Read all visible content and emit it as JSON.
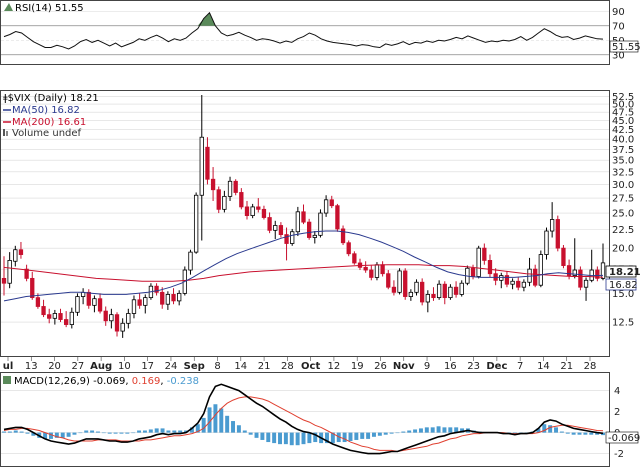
{
  "rsi_panel": {
    "label": "RSI(14)",
    "value_text": "51.55",
    "ticks": [
      "90",
      "70",
      "50",
      "30"
    ],
    "last_badge": "51.55"
  },
  "price_panel": {
    "symbol_label": "$VIX (Daily)",
    "symbol_value": "18.21",
    "ma50_label": "MA(50)",
    "ma50_value": "16.82",
    "ma200_label": "MA(200)",
    "ma200_value": "16.61",
    "volume_label": "Volume undef",
    "price_ticks": [
      "52.5",
      "50.0",
      "47.5",
      "45.0",
      "42.5",
      "40.0",
      "37.5",
      "35.0",
      "32.5",
      "30.0",
      "27.5",
      "25.0",
      "22.5",
      "20.0",
      "17.5",
      "15.0",
      "12.5"
    ],
    "last_badge": "18.21",
    "ma_badge": "16.82"
  },
  "macd_panel": {
    "label": "MACD(12,26,9)",
    "macd_value": "-0.069",
    "signal_value": "0.169",
    "hist_value": "-0.238",
    "ticks": [
      "4",
      "2",
      "0",
      "-2"
    ],
    "last_badge": "-0.069"
  },
  "x_axis": {
    "labels": [
      {
        "text": "ul",
        "bold": true
      },
      {
        "text": "13",
        "bold": false
      },
      {
        "text": "20",
        "bold": false
      },
      {
        "text": "27",
        "bold": false
      },
      {
        "text": "Aug",
        "bold": true
      },
      {
        "text": "10",
        "bold": false
      },
      {
        "text": "17",
        "bold": false
      },
      {
        "text": "24",
        "bold": false
      },
      {
        "text": "Sep",
        "bold": true
      },
      {
        "text": "8",
        "bold": false
      },
      {
        "text": "14",
        "bold": false
      },
      {
        "text": "21",
        "bold": false
      },
      {
        "text": "28",
        "bold": false
      },
      {
        "text": "Oct",
        "bold": true
      },
      {
        "text": "12",
        "bold": false
      },
      {
        "text": "19",
        "bold": false
      },
      {
        "text": "26",
        "bold": false
      },
      {
        "text": "Nov",
        "bold": true
      },
      {
        "text": "9",
        "bold": false
      },
      {
        "text": "16",
        "bold": false
      },
      {
        "text": "23",
        "bold": false
      },
      {
        "text": "Dec",
        "bold": true
      },
      {
        "text": "7",
        "bold": false
      },
      {
        "text": "14",
        "bold": false
      },
      {
        "text": "21",
        "bold": false
      },
      {
        "text": "28",
        "bold": false
      }
    ]
  },
  "colors": {
    "up": "#000000",
    "down": "#c8102e",
    "ma50": "#2b3a8f",
    "ma200": "#c8102e",
    "macd": "#000000",
    "signal": "#e04030",
    "hist": "#4a9bd0",
    "rsi_fill": "#5a8a5a",
    "grid": "#d9d9d9"
  },
  "chart_data": {
    "type": "candlestick",
    "title": "$VIX (Daily)",
    "ylim": [
      10.2,
      54
    ],
    "y_scale": "log",
    "x_months": [
      "Jul",
      "Aug",
      "Sep",
      "Oct",
      "Nov",
      "Dec"
    ],
    "candles": [
      {
        "o": 16.5,
        "h": 19.0,
        "l": 14.8,
        "c": 16.0
      },
      {
        "o": 16.0,
        "h": 19.5,
        "l": 15.5,
        "c": 18.5
      },
      {
        "o": 18.4,
        "h": 20.3,
        "l": 17.8,
        "c": 19.8
      },
      {
        "o": 19.8,
        "h": 20.8,
        "l": 18.7,
        "c": 19.2
      },
      {
        "o": 17.5,
        "h": 18.0,
        "l": 16.2,
        "c": 16.5
      },
      {
        "o": 16.5,
        "h": 17.2,
        "l": 14.4,
        "c": 14.6
      },
      {
        "o": 14.6,
        "h": 15.0,
        "l": 13.6,
        "c": 13.8
      },
      {
        "o": 13.8,
        "h": 14.4,
        "l": 12.9,
        "c": 13.1
      },
      {
        "o": 13.1,
        "h": 13.6,
        "l": 12.4,
        "c": 12.8
      },
      {
        "o": 12.8,
        "h": 13.5,
        "l": 12.3,
        "c": 13.2
      },
      {
        "o": 13.2,
        "h": 13.6,
        "l": 12.5,
        "c": 12.7
      },
      {
        "o": 12.7,
        "h": 13.4,
        "l": 12.1,
        "c": 12.3
      },
      {
        "o": 12.3,
        "h": 13.7,
        "l": 12.0,
        "c": 13.3
      },
      {
        "o": 13.3,
        "h": 15.0,
        "l": 13.0,
        "c": 14.7
      },
      {
        "o": 14.7,
        "h": 15.5,
        "l": 14.0,
        "c": 15.1
      },
      {
        "o": 15.1,
        "h": 15.4,
        "l": 13.6,
        "c": 13.9
      },
      {
        "o": 13.9,
        "h": 14.8,
        "l": 13.3,
        "c": 14.5
      },
      {
        "o": 14.5,
        "h": 15.0,
        "l": 13.2,
        "c": 13.4
      },
      {
        "o": 13.4,
        "h": 13.8,
        "l": 12.2,
        "c": 12.6
      },
      {
        "o": 12.6,
        "h": 13.6,
        "l": 12.0,
        "c": 13.1
      },
      {
        "o": 13.1,
        "h": 13.3,
        "l": 11.4,
        "c": 11.8
      },
      {
        "o": 11.8,
        "h": 12.8,
        "l": 11.3,
        "c": 12.4
      },
      {
        "o": 12.4,
        "h": 13.6,
        "l": 12.0,
        "c": 13.2
      },
      {
        "o": 13.2,
        "h": 14.8,
        "l": 12.8,
        "c": 14.4
      },
      {
        "o": 14.4,
        "h": 15.0,
        "l": 13.6,
        "c": 13.9
      },
      {
        "o": 13.9,
        "h": 14.9,
        "l": 13.2,
        "c": 14.6
      },
      {
        "o": 14.6,
        "h": 16.0,
        "l": 14.4,
        "c": 15.7
      },
      {
        "o": 15.7,
        "h": 16.0,
        "l": 14.8,
        "c": 15.1
      },
      {
        "o": 15.1,
        "h": 15.6,
        "l": 13.6,
        "c": 14.0
      },
      {
        "o": 14.0,
        "h": 15.2,
        "l": 13.5,
        "c": 14.9
      },
      {
        "o": 14.9,
        "h": 15.5,
        "l": 14.0,
        "c": 14.3
      },
      {
        "o": 14.3,
        "h": 15.3,
        "l": 13.9,
        "c": 15.0
      },
      {
        "o": 15.0,
        "h": 17.8,
        "l": 14.8,
        "c": 17.4
      },
      {
        "o": 17.4,
        "h": 19.8,
        "l": 16.9,
        "c": 19.5
      },
      {
        "o": 19.5,
        "h": 28.5,
        "l": 19.3,
        "c": 28.0
      },
      {
        "o": 28.0,
        "h": 53.0,
        "l": 21.0,
        "c": 40.5
      },
      {
        "o": 38.0,
        "h": 40.5,
        "l": 30.0,
        "c": 31.0
      },
      {
        "o": 31.0,
        "h": 33.5,
        "l": 27.0,
        "c": 29.0
      },
      {
        "o": 29.0,
        "h": 29.6,
        "l": 25.0,
        "c": 25.6
      },
      {
        "o": 25.6,
        "h": 28.8,
        "l": 25.1,
        "c": 27.8
      },
      {
        "o": 27.8,
        "h": 31.5,
        "l": 27.0,
        "c": 30.6
      },
      {
        "o": 30.6,
        "h": 31.0,
        "l": 28.0,
        "c": 28.5
      },
      {
        "o": 28.5,
        "h": 29.3,
        "l": 25.6,
        "c": 26.0
      },
      {
        "o": 26.0,
        "h": 27.0,
        "l": 24.0,
        "c": 24.6
      },
      {
        "o": 24.6,
        "h": 26.5,
        "l": 24.2,
        "c": 26.0
      },
      {
        "o": 26.0,
        "h": 27.5,
        "l": 25.1,
        "c": 25.6
      },
      {
        "o": 25.6,
        "h": 26.2,
        "l": 24.0,
        "c": 24.3
      },
      {
        "o": 24.3,
        "h": 25.1,
        "l": 22.0,
        "c": 22.4
      },
      {
        "o": 22.4,
        "h": 23.8,
        "l": 21.2,
        "c": 23.1
      },
      {
        "o": 23.1,
        "h": 23.6,
        "l": 21.4,
        "c": 21.8
      },
      {
        "o": 21.8,
        "h": 22.8,
        "l": 18.5,
        "c": 20.6
      },
      {
        "o": 20.6,
        "h": 22.6,
        "l": 20.3,
        "c": 22.2
      },
      {
        "o": 22.2,
        "h": 26.0,
        "l": 21.6,
        "c": 25.2
      },
      {
        "o": 25.2,
        "h": 26.4,
        "l": 23.3,
        "c": 23.6
      },
      {
        "o": 23.6,
        "h": 24.1,
        "l": 21.1,
        "c": 21.4
      },
      {
        "o": 21.4,
        "h": 22.3,
        "l": 20.6,
        "c": 21.7
      },
      {
        "o": 21.7,
        "h": 25.6,
        "l": 21.4,
        "c": 25.0
      },
      {
        "o": 25.0,
        "h": 28.0,
        "l": 24.4,
        "c": 27.2
      },
      {
        "o": 27.2,
        "h": 27.9,
        "l": 25.8,
        "c": 26.2
      },
      {
        "o": 26.2,
        "h": 26.5,
        "l": 22.2,
        "c": 22.6
      },
      {
        "o": 22.6,
        "h": 23.1,
        "l": 20.4,
        "c": 20.7
      },
      {
        "o": 20.7,
        "h": 21.0,
        "l": 19.0,
        "c": 19.3
      },
      {
        "o": 19.3,
        "h": 19.6,
        "l": 18.0,
        "c": 18.2
      },
      {
        "o": 18.2,
        "h": 18.7,
        "l": 17.4,
        "c": 17.7
      },
      {
        "o": 17.7,
        "h": 18.4,
        "l": 17.1,
        "c": 17.4
      },
      {
        "o": 17.4,
        "h": 17.9,
        "l": 16.3,
        "c": 16.6
      },
      {
        "o": 16.6,
        "h": 18.3,
        "l": 16.3,
        "c": 18.0
      },
      {
        "o": 18.0,
        "h": 18.4,
        "l": 16.7,
        "c": 17.0
      },
      {
        "o": 17.0,
        "h": 17.4,
        "l": 15.4,
        "c": 15.6
      },
      {
        "o": 15.6,
        "h": 16.3,
        "l": 14.8,
        "c": 15.1
      },
      {
        "o": 15.1,
        "h": 17.6,
        "l": 14.9,
        "c": 17.3
      },
      {
        "o": 17.3,
        "h": 17.6,
        "l": 14.4,
        "c": 14.7
      },
      {
        "o": 14.7,
        "h": 15.4,
        "l": 14.3,
        "c": 15.1
      },
      {
        "o": 15.1,
        "h": 16.4,
        "l": 14.8,
        "c": 16.1
      },
      {
        "o": 16.1,
        "h": 16.5,
        "l": 13.9,
        "c": 14.2
      },
      {
        "o": 14.2,
        "h": 15.3,
        "l": 13.3,
        "c": 14.9
      },
      {
        "o": 14.9,
        "h": 15.6,
        "l": 14.3,
        "c": 14.6
      },
      {
        "o": 14.6,
        "h": 16.3,
        "l": 14.4,
        "c": 15.9
      },
      {
        "o": 15.9,
        "h": 16.2,
        "l": 14.0,
        "c": 14.6
      },
      {
        "o": 14.6,
        "h": 15.9,
        "l": 14.4,
        "c": 15.6
      },
      {
        "o": 15.6,
        "h": 16.2,
        "l": 14.6,
        "c": 14.9
      },
      {
        "o": 14.9,
        "h": 16.3,
        "l": 14.7,
        "c": 16.0
      },
      {
        "o": 16.0,
        "h": 17.9,
        "l": 15.8,
        "c": 17.6
      },
      {
        "o": 17.6,
        "h": 18.0,
        "l": 16.4,
        "c": 16.7
      },
      {
        "o": 16.7,
        "h": 20.3,
        "l": 16.5,
        "c": 20.0
      },
      {
        "o": 20.0,
        "h": 20.6,
        "l": 18.0,
        "c": 18.5
      },
      {
        "o": 18.5,
        "h": 19.2,
        "l": 16.6,
        "c": 17.0
      },
      {
        "o": 17.0,
        "h": 17.6,
        "l": 15.8,
        "c": 16.3
      },
      {
        "o": 16.3,
        "h": 17.1,
        "l": 15.5,
        "c": 16.8
      },
      {
        "o": 16.8,
        "h": 17.3,
        "l": 15.6,
        "c": 15.9
      },
      {
        "o": 15.9,
        "h": 16.5,
        "l": 15.4,
        "c": 16.2
      },
      {
        "o": 16.2,
        "h": 16.6,
        "l": 15.3,
        "c": 15.6
      },
      {
        "o": 15.6,
        "h": 16.4,
        "l": 15.2,
        "c": 16.1
      },
      {
        "o": 16.1,
        "h": 18.8,
        "l": 15.7,
        "c": 17.5
      },
      {
        "o": 17.5,
        "h": 18.0,
        "l": 15.6,
        "c": 15.8
      },
      {
        "o": 15.8,
        "h": 19.7,
        "l": 15.6,
        "c": 19.2
      },
      {
        "o": 19.2,
        "h": 22.8,
        "l": 18.6,
        "c": 22.3
      },
      {
        "o": 22.3,
        "h": 26.8,
        "l": 21.4,
        "c": 24.0
      },
      {
        "o": 24.0,
        "h": 24.6,
        "l": 19.6,
        "c": 20.0
      },
      {
        "o": 20.0,
        "h": 20.4,
        "l": 17.6,
        "c": 17.9
      },
      {
        "o": 17.9,
        "h": 18.6,
        "l": 16.4,
        "c": 16.8
      },
      {
        "o": 16.8,
        "h": 21.3,
        "l": 16.5,
        "c": 17.4
      },
      {
        "o": 17.4,
        "h": 17.8,
        "l": 15.3,
        "c": 15.6
      },
      {
        "o": 15.6,
        "h": 16.6,
        "l": 14.3,
        "c": 16.3
      },
      {
        "o": 16.3,
        "h": 19.8,
        "l": 16.1,
        "c": 17.4
      },
      {
        "o": 17.4,
        "h": 17.8,
        "l": 16.2,
        "c": 16.5
      },
      {
        "o": 16.5,
        "h": 20.6,
        "l": 16.3,
        "c": 18.21
      }
    ],
    "ma50": [
      14.3,
      14.5,
      14.7,
      14.8,
      14.9,
      15.0,
      15.1,
      15.1,
      15.0,
      14.9,
      14.9,
      14.9,
      15.0,
      15.1,
      15.3,
      15.6,
      16.0,
      16.6,
      17.3,
      18.0,
      18.7,
      19.3,
      19.8,
      20.3,
      20.8,
      21.3,
      21.7,
      22.0,
      22.2,
      22.3,
      22.3,
      22.1,
      21.8,
      21.3,
      20.8,
      20.2,
      19.6,
      18.9,
      18.3,
      17.7,
      17.2,
      16.9,
      16.7,
      16.6,
      16.6,
      16.6,
      16.6,
      16.7,
      16.8,
      17.0,
      17.1,
      17.0,
      16.9,
      16.8,
      16.82
    ],
    "ma200": [
      17.7,
      17.5,
      17.3,
      17.1,
      16.9,
      16.7,
      16.5,
      16.4,
      16.3,
      16.2,
      16.2,
      16.2,
      16.3,
      16.5,
      16.8,
      17.0,
      17.2,
      17.3,
      17.4,
      17.5,
      17.6,
      17.7,
      17.8,
      17.9,
      17.95,
      18.0,
      18.0,
      18.0,
      17.9,
      17.9,
      17.8,
      17.6,
      17.4,
      17.2,
      17.0,
      16.9,
      16.8,
      16.7,
      16.7,
      16.61
    ],
    "rsi": [
      55,
      58,
      62,
      60,
      54,
      48,
      44,
      40,
      40,
      43,
      41,
      38,
      42,
      48,
      51,
      47,
      50,
      46,
      42,
      46,
      41,
      44,
      47,
      52,
      50,
      54,
      57,
      53,
      48,
      52,
      50,
      53,
      60,
      66,
      80,
      88,
      70,
      60,
      56,
      58,
      61,
      57,
      54,
      50,
      52,
      51,
      49,
      46,
      49,
      47,
      52,
      55,
      60,
      57,
      52,
      49,
      47,
      46,
      45,
      44,
      42,
      44,
      43,
      41,
      40,
      45,
      43,
      45,
      48,
      44,
      47,
      46,
      49,
      47,
      50,
      49,
      51,
      54,
      52,
      56,
      53,
      50,
      47,
      49,
      48,
      50,
      49,
      51,
      55,
      50,
      54,
      60,
      66,
      62,
      57,
      54,
      55,
      51,
      53,
      56,
      54,
      52,
      51.55
    ],
    "macd": [
      0.3,
      0.4,
      0.5,
      0.5,
      0.3,
      0.0,
      -0.3,
      -0.6,
      -0.8,
      -0.9,
      -1.0,
      -1.1,
      -1.0,
      -0.8,
      -0.6,
      -0.6,
      -0.6,
      -0.7,
      -0.8,
      -0.8,
      -0.9,
      -0.9,
      -0.8,
      -0.6,
      -0.5,
      -0.4,
      -0.2,
      -0.1,
      -0.2,
      -0.1,
      -0.1,
      0.0,
      0.4,
      0.9,
      1.8,
      3.4,
      4.4,
      4.6,
      4.4,
      4.2,
      4.0,
      3.6,
      3.2,
      2.8,
      2.5,
      2.1,
      1.7,
      1.3,
      1.0,
      0.6,
      0.3,
      0.1,
      0.0,
      -0.2,
      -0.5,
      -0.8,
      -1.1,
      -1.3,
      -1.5,
      -1.7,
      -1.8,
      -1.9,
      -2.0,
      -2.0,
      -2.0,
      -1.9,
      -1.8,
      -1.8,
      -1.6,
      -1.4,
      -1.2,
      -1.0,
      -0.8,
      -0.6,
      -0.4,
      -0.3,
      -0.1,
      0.0,
      0.1,
      0.2,
      0.1,
      0.0,
      0.0,
      0.0,
      0.0,
      -0.1,
      -0.1,
      -0.2,
      -0.1,
      -0.1,
      0.0,
      0.4,
      1.0,
      1.2,
      1.1,
      0.8,
      0.6,
      0.4,
      0.3,
      0.2,
      0.1,
      0.0,
      -0.069
    ],
    "signal": [
      0.2,
      0.3,
      0.3,
      0.4,
      0.4,
      0.3,
      0.2,
      0.0,
      -0.2,
      -0.4,
      -0.5,
      -0.7,
      -0.8,
      -0.8,
      -0.8,
      -0.8,
      -0.7,
      -0.7,
      -0.7,
      -0.7,
      -0.8,
      -0.8,
      -0.8,
      -0.8,
      -0.7,
      -0.7,
      -0.6,
      -0.5,
      -0.4,
      -0.3,
      -0.3,
      -0.2,
      -0.1,
      0.1,
      0.4,
      1.0,
      1.7,
      2.3,
      2.8,
      3.1,
      3.3,
      3.4,
      3.4,
      3.3,
      3.2,
      3.0,
      2.7,
      2.4,
      2.1,
      1.8,
      1.5,
      1.2,
      1.0,
      0.7,
      0.5,
      0.2,
      -0.1,
      -0.4,
      -0.6,
      -0.9,
      -1.1,
      -1.3,
      -1.4,
      -1.6,
      -1.7,
      -1.7,
      -1.7,
      -1.8,
      -1.7,
      -1.6,
      -1.5,
      -1.4,
      -1.3,
      -1.1,
      -1.0,
      -0.8,
      -0.6,
      -0.5,
      -0.3,
      -0.2,
      -0.1,
      -0.1,
      0.0,
      0.0,
      0.0,
      0.0,
      -0.1,
      -0.1,
      -0.1,
      -0.1,
      -0.1,
      0.0,
      0.2,
      0.5,
      0.6,
      0.7,
      0.7,
      0.6,
      0.5,
      0.4,
      0.3,
      0.2,
      0.169
    ]
  }
}
